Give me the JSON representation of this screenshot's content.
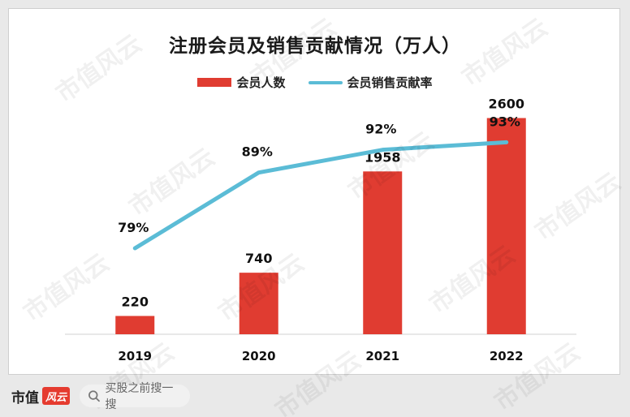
{
  "title": "注册会员及销售贡献情况（万人）",
  "legend": {
    "bar_label": "会员人数",
    "line_label": "会员销售贡献率"
  },
  "colors": {
    "bar": "#e03c31",
    "line": "#5bbcd6",
    "axis": "#d0d0d0"
  },
  "chart_data": {
    "type": "bar",
    "categories": [
      "2019",
      "2020",
      "2021",
      "2022"
    ],
    "series": [
      {
        "name": "会员人数",
        "type": "bar",
        "values": [
          220,
          740,
          1958,
          2600
        ],
        "labels": [
          "220",
          "740",
          "1958",
          "2600"
        ]
      },
      {
        "name": "会员销售贡献率",
        "type": "line",
        "values": [
          79,
          89,
          92,
          93
        ],
        "labels": [
          "79%",
          "89%",
          "92%",
          "93%"
        ],
        "unit": "%"
      }
    ],
    "title": "注册会员及销售贡献情况（万人）",
    "xlabel": "",
    "ylabel": "",
    "ylim": [
      0,
      2800
    ],
    "legend_position": "top-center",
    "grid": false
  },
  "watermark": "市值风云",
  "footer": {
    "logo_text": "市值",
    "logo_mark": "风云",
    "search_placeholder": "买股之前搜一搜",
    "search_icon": "search-icon"
  }
}
